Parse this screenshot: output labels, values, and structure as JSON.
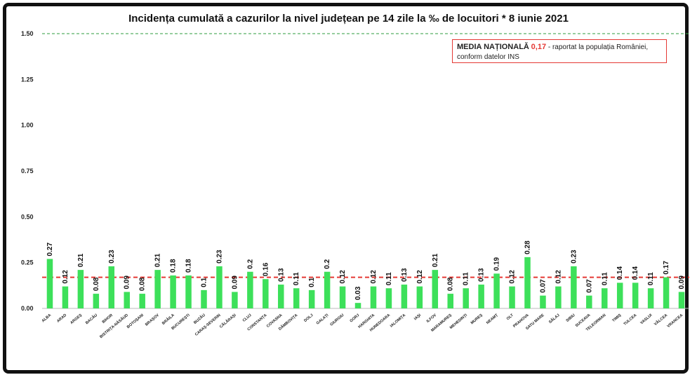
{
  "chart_data": {
    "type": "bar",
    "title": "Incidența cumulată a cazurilor la nivel județean pe 14 zile la ‰ de locuitori *  8 iunie 2021",
    "categories": [
      "ALBA",
      "ARAD",
      "ARGEȘ",
      "BACĂU",
      "BIHOR",
      "BISTRIȚA-NĂSĂUD",
      "BOTOȘANI",
      "BRAȘOV",
      "BRĂILA",
      "BUCUREȘTI",
      "BUZĂU",
      "CARAȘ-SEVERIN",
      "CĂLĂRAȘI",
      "CLUJ",
      "CONSTANȚA",
      "COVASNA",
      "DÂMBOVIȚA",
      "DOLJ",
      "GALAȚI",
      "GIURGIU",
      "GORJ",
      "HARGHITA",
      "HUNEDOARA",
      "IALOMIȚA",
      "IAȘI",
      "ILFOV",
      "MARAMUREȘ",
      "MEHEDINȚI",
      "MUREȘ",
      "NEAMȚ",
      "OLT",
      "PRAHOVA",
      "SATU MARE",
      "SĂLAJ",
      "SIBIU",
      "SUCEAVA",
      "TELEORMAN",
      "TIMIȘ",
      "TULCEA",
      "VASLUI",
      "VÂLCEA",
      "VRANCEA"
    ],
    "values": [
      0.27,
      0.12,
      0.21,
      0.08,
      0.23,
      0.09,
      0.08,
      0.21,
      0.18,
      0.18,
      0.1,
      0.23,
      0.09,
      0.2,
      0.16,
      0.13,
      0.11,
      0.1,
      0.2,
      0.12,
      0.03,
      0.12,
      0.11,
      0.13,
      0.12,
      0.21,
      0.08,
      0.11,
      0.13,
      0.19,
      0.12,
      0.28,
      0.07,
      0.12,
      0.23,
      0.07,
      0.11,
      0.14,
      0.14,
      0.11,
      0.17,
      0.09
    ],
    "value_labels": [
      "0.27",
      "0.12",
      "0.21",
      "0.08",
      "0.23",
      "0.09",
      "0.08",
      "0.21",
      "0.18",
      "0.18",
      "0.1",
      "0.23",
      "0.09",
      "0.2",
      "0.16",
      "0.13",
      "0.11",
      "0.1",
      "0.2",
      "0.12",
      "0.03",
      "0.12",
      "0.11",
      "0.13",
      "0.12",
      "0.21",
      "0.08",
      "0.11",
      "0.13",
      "0.19",
      "0.12",
      "0.28",
      "0.07",
      "0.12",
      "0.23",
      "0.07",
      "0.11",
      "0.14",
      "0.14",
      "0.11",
      "0.17",
      "0.09"
    ],
    "y_ticks": [
      "0.00",
      "0.25",
      "0.50",
      "0.75",
      "1.00",
      "1.25",
      "1.50"
    ],
    "ylim": [
      0,
      1.5
    ],
    "reference_lines": [
      {
        "value": 1.5,
        "color": "#2e9e3f",
        "style": "dashed"
      },
      {
        "value": 0.17,
        "color": "#e53935",
        "style": "dashed"
      }
    ],
    "bar_color": "#3de05a",
    "grid": false,
    "legend_placement": "top-right"
  },
  "legend": {
    "label": "MEDIA NAȚIONALĂ",
    "value": "0,17",
    "text_line1": "- raportat la populația României,",
    "text_line2": "conform datelor INS"
  }
}
